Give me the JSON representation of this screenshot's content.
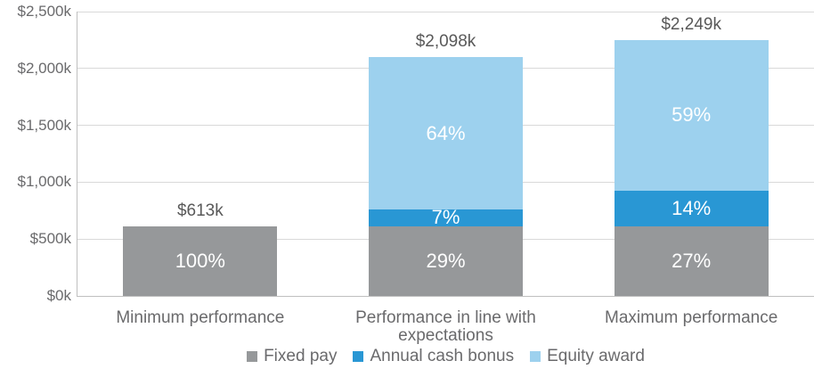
{
  "chart_data": {
    "type": "bar",
    "subtype": "stacked-column",
    "title": "",
    "unit": "$k",
    "grid": true,
    "legend_position": "bottom",
    "series": [
      {
        "name": "Fixed pay",
        "color": "#96989a"
      },
      {
        "name": "Annual cash bonus",
        "color": "#2997d4"
      },
      {
        "name": "Equity award",
        "color": "#9dd1ee"
      }
    ],
    "categories": [
      {
        "label": "Minimum performance",
        "total_label": "$613k",
        "total_value": 613,
        "segments": [
          {
            "series": "Fixed pay",
            "value": 613,
            "pct_label": "100%"
          }
        ]
      },
      {
        "label": "Performance in line with expectations",
        "total_label": "$2,098k",
        "total_value": 2098,
        "segments": [
          {
            "series": "Fixed pay",
            "value": 613,
            "pct_label": "29%"
          },
          {
            "series": "Annual cash bonus",
            "value": 147,
            "pct_label": "7%"
          },
          {
            "series": "Equity award",
            "value": 1338,
            "pct_label": "64%"
          }
        ]
      },
      {
        "label": "Maximum performance",
        "total_label": "$2,249k",
        "total_value": 2249,
        "segments": [
          {
            "series": "Fixed pay",
            "value": 613,
            "pct_label": "27%"
          },
          {
            "series": "Annual cash bonus",
            "value": 315,
            "pct_label": "14%"
          },
          {
            "series": "Equity award",
            "value": 1321,
            "pct_label": "59%"
          }
        ]
      }
    ],
    "y_axis": {
      "max": 2500,
      "ticks": [
        {
          "label": "$0k",
          "value": 0
        },
        {
          "label": "$500k",
          "value": 500
        },
        {
          "label": "$1,000k",
          "value": 1000
        },
        {
          "label": "$1,500k",
          "value": 1500
        },
        {
          "label": "$2,000k",
          "value": 2000
        },
        {
          "label": "$2,500k",
          "value": 2500
        }
      ]
    },
    "legend": [
      "Fixed pay",
      "Annual cash bonus",
      "Equity award"
    ]
  },
  "colors": {
    "background": "#ffffff",
    "gridline": "#d9d9d9",
    "axis_line": "#bfbfbf",
    "tick_text": "#6a6a6c",
    "total_label_text": "#595959",
    "category_text": "#6a6a6c",
    "legend_text": "#6a6a6c",
    "percent_text": "#ffffff"
  }
}
